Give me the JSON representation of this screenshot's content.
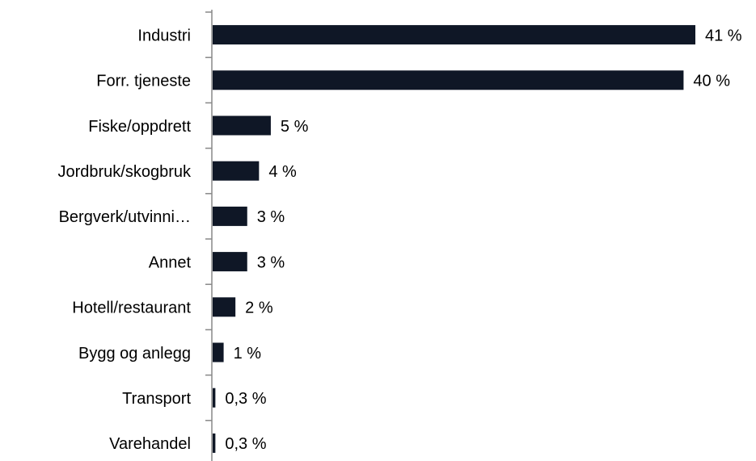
{
  "chart_data": {
    "type": "barh",
    "categories": [
      "Industri",
      "Forr. tjeneste",
      "Fiske/oppdrett",
      "Jordbruk/skogbruk",
      "Bergverk/utvinni…",
      "Annet",
      "Hotell/restaurant",
      "Bygg og anlegg",
      "Transport",
      "Varehandel"
    ],
    "values": [
      41,
      40,
      5,
      4,
      3,
      3,
      2,
      1,
      0.3,
      0.3
    ],
    "value_labels": [
      "41 %",
      "40 %",
      "5 %",
      "4 %",
      "3 %",
      "3 %",
      "2 %",
      "1 %",
      "0,3 %",
      "0,3 %"
    ],
    "color": "#0f1726"
  }
}
